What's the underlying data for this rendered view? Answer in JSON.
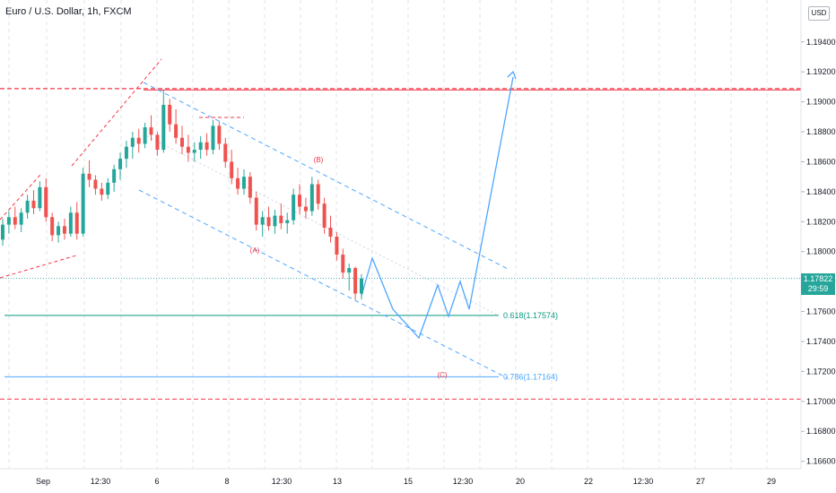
{
  "header": {
    "symbol_line": "Euro / U.S. Dollar, 1h, FXCM",
    "currency": "USD"
  },
  "price_tag": {
    "price": "1.17822",
    "countdown": "29:59"
  },
  "colors": {
    "up": "#26a69a",
    "down": "#ef5350",
    "projection": "#4da6ff",
    "resistance": "#f23645",
    "support": "#089981",
    "wave_label": "#f23645"
  },
  "chart_data": {
    "type": "candlestick",
    "title": "Euro / U.S. Dollar, 1h, FXCM",
    "ylabel": "USD",
    "ylim": [
      1.1655,
      1.1965
    ],
    "y_ticks": [
      "1.19400",
      "1.19200",
      "1.19000",
      "1.18800",
      "1.18600",
      "1.18400",
      "1.18200",
      "1.18000",
      "1.17800",
      "1.17600",
      "1.17400",
      "1.17200",
      "1.17000",
      "1.16800",
      "1.16600"
    ],
    "x_ticks": [
      "Sep",
      "12:30",
      "6",
      "8",
      "12:30",
      "13",
      "15",
      "12:30",
      "20",
      "22",
      "12:30",
      "27",
      "29"
    ],
    "last_price": 1.17822,
    "annotations": {
      "wave_labels": [
        "(A)",
        "(B)",
        "(C)"
      ],
      "fib_levels": [
        {
          "label": "0.618(1.17574)",
          "value": 1.17574
        },
        {
          "label": "0.786(1.17164)",
          "value": 1.17164
        }
      ],
      "resistance": 1.19088,
      "support": 1.17015
    },
    "candles": [
      [
        1.1808,
        1.1822,
        1.1804,
        1.1818
      ],
      [
        1.1818,
        1.1827,
        1.1812,
        1.1823
      ],
      [
        1.1823,
        1.183,
        1.1815,
        1.1818
      ],
      [
        1.1818,
        1.1829,
        1.1813,
        1.1826
      ],
      [
        1.1826,
        1.1838,
        1.1822,
        1.1834
      ],
      [
        1.1834,
        1.1841,
        1.1825,
        1.1829
      ],
      [
        1.1829,
        1.1847,
        1.1827,
        1.1843
      ],
      [
        1.1843,
        1.1849,
        1.182,
        1.1823
      ],
      [
        1.1823,
        1.1826,
        1.1807,
        1.1811
      ],
      [
        1.1811,
        1.182,
        1.1806,
        1.1817
      ],
      [
        1.1817,
        1.1822,
        1.1808,
        1.1812
      ],
      [
        1.1812,
        1.183,
        1.181,
        1.1826
      ],
      [
        1.1826,
        1.1833,
        1.1808,
        1.1812
      ],
      [
        1.1812,
        1.1856,
        1.181,
        1.1852
      ],
      [
        1.1852,
        1.1861,
        1.1843,
        1.1848
      ],
      [
        1.1848,
        1.1851,
        1.1838,
        1.1842
      ],
      [
        1.1842,
        1.1846,
        1.1834,
        1.1838
      ],
      [
        1.1838,
        1.1849,
        1.1835,
        1.1846
      ],
      [
        1.1846,
        1.1858,
        1.184,
        1.1855
      ],
      [
        1.1855,
        1.1866,
        1.1848,
        1.1862
      ],
      [
        1.1862,
        1.1874,
        1.1856,
        1.187
      ],
      [
        1.187,
        1.188,
        1.1862,
        1.1876
      ],
      [
        1.1876,
        1.1882,
        1.1866,
        1.1872
      ],
      [
        1.1872,
        1.1886,
        1.1869,
        1.1883
      ],
      [
        1.1883,
        1.1891,
        1.1874,
        1.1878
      ],
      [
        1.1878,
        1.188,
        1.1864,
        1.1868
      ],
      [
        1.1868,
        1.1908,
        1.1866,
        1.1898
      ],
      [
        1.1898,
        1.1902,
        1.188,
        1.1885
      ],
      [
        1.1885,
        1.1895,
        1.1872,
        1.1876
      ],
      [
        1.1876,
        1.1884,
        1.1865,
        1.187
      ],
      [
        1.187,
        1.1878,
        1.186,
        1.1866
      ],
      [
        1.1866,
        1.1873,
        1.186,
        1.1868
      ],
      [
        1.1868,
        1.1877,
        1.1862,
        1.1873
      ],
      [
        1.1873,
        1.1879,
        1.1864,
        1.1868
      ],
      [
        1.1868,
        1.1888,
        1.1865,
        1.1884
      ],
      [
        1.1884,
        1.1887,
        1.1868,
        1.1872
      ],
      [
        1.1872,
        1.1876,
        1.1856,
        1.186
      ],
      [
        1.186,
        1.1868,
        1.1845,
        1.1849
      ],
      [
        1.1849,
        1.1856,
        1.1838,
        1.1842
      ],
      [
        1.1842,
        1.1855,
        1.1838,
        1.185
      ],
      [
        1.185,
        1.1853,
        1.1832,
        1.1836
      ],
      [
        1.1836,
        1.184,
        1.1814,
        1.1818
      ],
      [
        1.1818,
        1.1827,
        1.181,
        1.1823
      ],
      [
        1.1823,
        1.183,
        1.1814,
        1.1817
      ],
      [
        1.1817,
        1.1828,
        1.1812,
        1.1824
      ],
      [
        1.1824,
        1.1832,
        1.1815,
        1.1819
      ],
      [
        1.1819,
        1.1826,
        1.1812,
        1.1821
      ],
      [
        1.1821,
        1.1842,
        1.1818,
        1.1838
      ],
      [
        1.1838,
        1.1845,
        1.1825,
        1.183
      ],
      [
        1.183,
        1.1836,
        1.1822,
        1.1827
      ],
      [
        1.1827,
        1.185,
        1.1824,
        1.1845
      ],
      [
        1.1845,
        1.1848,
        1.1828,
        1.1832
      ],
      [
        1.1832,
        1.1836,
        1.1812,
        1.1816
      ],
      [
        1.1816,
        1.1824,
        1.1806,
        1.181
      ],
      [
        1.181,
        1.1813,
        1.1794,
        1.1798
      ],
      [
        1.1798,
        1.1802,
        1.1782,
        1.1786
      ],
      [
        1.1786,
        1.1792,
        1.1774,
        1.1789
      ],
      [
        1.1789,
        1.179,
        1.1768,
        1.1772
      ],
      [
        1.1772,
        1.1785,
        1.1768,
        1.1782
      ]
    ]
  }
}
